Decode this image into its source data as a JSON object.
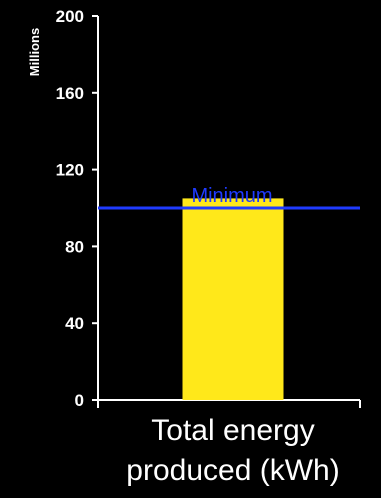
{
  "chart_data": {
    "type": "bar",
    "title": "",
    "categories": [
      "Total energy produced (kWh)"
    ],
    "category_lines": [
      "Total energy",
      "produced (kWh)"
    ],
    "values": [
      105
    ],
    "ylabel": "Millions",
    "ylim": [
      0,
      200
    ],
    "yticks": [
      0,
      40,
      80,
      120,
      160,
      200
    ],
    "reference_line": {
      "label": "Minimum",
      "value": 100,
      "color": "#1f3bff"
    },
    "colors": {
      "background": "#000000",
      "bar": "#ffe81a",
      "axis": "#ffffff",
      "text": "#ffffff"
    }
  }
}
